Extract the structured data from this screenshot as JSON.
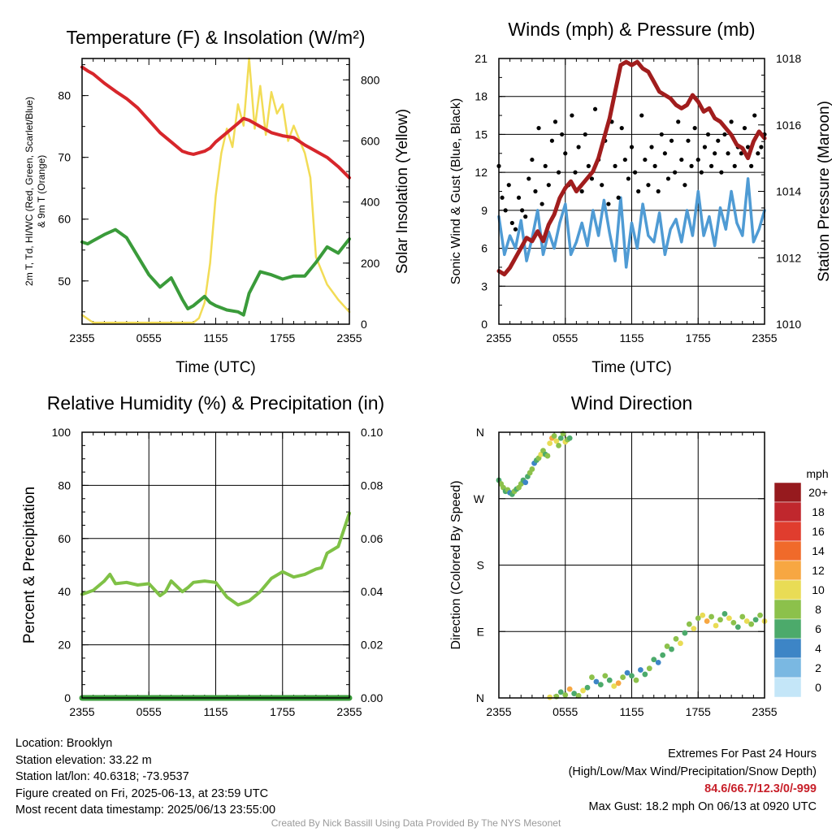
{
  "chart_data": [
    {
      "type": "line",
      "title": "Temperature (F) & Insolation (W/m²)",
      "xlabel": "Time (UTC)",
      "ylabel": "2m T, Td, HI/WC (Red, Green, Scarlet/Blue) & 9m T (Orange)",
      "ylabel_right": "Solar Insolation (Yellow)",
      "x_ticks": [
        "2355",
        "0555",
        "1155",
        "1755",
        "2355"
      ],
      "ylim": [
        43,
        86
      ],
      "y_ticks": [
        50,
        60,
        70,
        80
      ],
      "ylim_right": [
        0,
        870
      ],
      "y_ticks_right": [
        0,
        200,
        400,
        600,
        800
      ],
      "grid": false,
      "series": [
        {
          "color": "#d7262b",
          "axis": "left",
          "x": [
            0,
            0.5,
            1,
            2,
            3,
            4,
            5,
            6,
            7,
            8,
            9,
            9.5,
            10,
            11,
            11.5,
            12,
            13,
            14,
            14.5,
            15,
            16,
            17,
            18,
            19,
            20,
            21,
            22,
            23,
            24
          ],
          "values": [
            84.6,
            84,
            83.5,
            82,
            80.7,
            79.5,
            78,
            76,
            74,
            72.5,
            71,
            70.7,
            70.5,
            71,
            71.5,
            72.5,
            74,
            75.5,
            76.3,
            76,
            75,
            74,
            73.5,
            73.2,
            72,
            71,
            70,
            68.5,
            66.7
          ]
        },
        {
          "color": "#3a9b3a",
          "axis": "left",
          "x": [
            0,
            0.5,
            1,
            2,
            3,
            4,
            5,
            6,
            7,
            8,
            9,
            9.5,
            10,
            11,
            11.5,
            12,
            13,
            14,
            14.5,
            15,
            16,
            17,
            18,
            19,
            20,
            21,
            22,
            23,
            24
          ],
          "values": [
            56.3,
            56,
            56.5,
            57.5,
            58.3,
            57,
            54,
            51,
            49,
            50.5,
            47,
            45.5,
            46,
            47.5,
            46.5,
            46,
            45.3,
            45,
            44.5,
            48,
            51.5,
            51,
            50.3,
            50.8,
            50.8,
            53,
            55.5,
            54.5,
            56.8
          ]
        },
        {
          "color": "#f2dc56",
          "axis": "right",
          "x": [
            0,
            1,
            2,
            3,
            4,
            5,
            6,
            7,
            8,
            9,
            10,
            10.5,
            11,
            11.5,
            12,
            12.5,
            13,
            13.5,
            14,
            14.5,
            15,
            15.5,
            16,
            16.5,
            17,
            17.5,
            18,
            18.5,
            19,
            20,
            20.5,
            21,
            22,
            23,
            24
          ],
          "values": [
            30,
            5,
            5,
            5,
            5,
            5,
            5,
            5,
            5,
            5,
            5,
            20,
            70,
            200,
            420,
            560,
            640,
            580,
            720,
            650,
            870,
            640,
            780,
            620,
            760,
            690,
            720,
            600,
            650,
            560,
            480,
            220,
            130,
            80,
            40
          ]
        }
      ]
    },
    {
      "type": "scatter",
      "title": "Winds (mph) & Pressure (mb)",
      "xlabel": "Time (UTC)",
      "ylabel": "Sonic Wind & Gust (Blue, Black)",
      "ylabel_right": "Station Pressure (Maroon)",
      "x_ticks": [
        "2355",
        "0555",
        "1155",
        "1755",
        "2355"
      ],
      "ylim": [
        0,
        21
      ],
      "y_ticks": [
        0,
        3,
        6,
        9,
        12,
        15,
        18,
        21
      ],
      "ylim_right": [
        1010,
        1018
      ],
      "y_ticks_right": [
        1010,
        1012,
        1014,
        1016,
        1018
      ],
      "grid": true,
      "series": [
        {
          "color": "#4f9bd4",
          "kind": "line",
          "axis": "left",
          "x": [
            0,
            0.5,
            1,
            1.5,
            2,
            2.5,
            3,
            3.5,
            4,
            4.5,
            5,
            5.5,
            6,
            6.5,
            7,
            7.5,
            8,
            8.5,
            9,
            9.5,
            10,
            10.5,
            11,
            11.5,
            12,
            12.5,
            13,
            13.5,
            14,
            14.5,
            15,
            15.5,
            16,
            16.5,
            17,
            17.5,
            18,
            18.5,
            19,
            19.5,
            20,
            20.5,
            21,
            21.5,
            22,
            22.5,
            23,
            23.5,
            24
          ],
          "values": [
            8.5,
            5.5,
            7,
            6,
            8.2,
            5,
            6.8,
            9,
            5.5,
            7.3,
            6,
            8,
            9.5,
            5.5,
            6.5,
            8,
            6.2,
            9,
            7,
            9.8,
            7.2,
            5,
            10,
            4.5,
            8,
            6,
            9.5,
            7,
            6.5,
            8.8,
            5.5,
            7.5,
            8.3,
            6.5,
            9,
            7,
            10.5,
            7,
            8.5,
            6.2,
            9.2,
            7.5,
            10.5,
            8,
            7,
            11.5,
            6.5,
            7.5,
            9
          ]
        },
        {
          "color": "#000000",
          "kind": "dots",
          "axis": "left",
          "x": [
            0,
            0.3,
            0.6,
            0.9,
            1.2,
            1.5,
            1.8,
            2.1,
            2.4,
            2.7,
            3,
            3.3,
            3.6,
            3.9,
            4.2,
            4.5,
            4.8,
            5.1,
            5.4,
            5.7,
            6,
            6.3,
            6.6,
            6.9,
            7.2,
            7.5,
            7.8,
            8.1,
            8.4,
            8.7,
            9,
            9.3,
            9.6,
            9.9,
            10.2,
            10.5,
            10.8,
            11.1,
            11.4,
            11.7,
            12,
            12.3,
            12.6,
            12.9,
            13.2,
            13.5,
            13.8,
            14.1,
            14.4,
            14.7,
            15,
            15.3,
            15.6,
            15.9,
            16.2,
            16.5,
            16.8,
            17.1,
            17.4,
            17.7,
            18,
            18.3,
            18.6,
            18.9,
            19.2,
            19.5,
            19.8,
            20.1,
            20.4,
            20.7,
            21,
            21.3,
            21.6,
            21.9,
            22.2,
            22.5,
            22.8,
            23.1,
            23.4,
            23.7,
            24
          ],
          "values": [
            12.5,
            10,
            9,
            11,
            8,
            7.5,
            10,
            9,
            8.5,
            11.5,
            13,
            10.5,
            15.5,
            9.5,
            12.5,
            11,
            14.5,
            16,
            12,
            15,
            13.5,
            11,
            16.5,
            12,
            14,
            10.5,
            15,
            12.5,
            11.5,
            17,
            13,
            11,
            14.5,
            9.5,
            16,
            12.5,
            10,
            15.5,
            13,
            11.5,
            14,
            12,
            10.5,
            16.5,
            13,
            11,
            14,
            12.5,
            10.5,
            15,
            13.5,
            11.5,
            14.5,
            12,
            16,
            13,
            11,
            14.5,
            12.5,
            15.5,
            13,
            12,
            14,
            15,
            12.5,
            13.5,
            14.5,
            12,
            15,
            13.5,
            16,
            12.5,
            14,
            13.5,
            15.5,
            14,
            12.5,
            16.5,
            13.5,
            14,
            15
          ]
        },
        {
          "color": "#a11d1d",
          "kind": "line",
          "axis": "right",
          "x": [
            0,
            0.5,
            1,
            1.5,
            2,
            2.5,
            3,
            3.5,
            4,
            4.5,
            5,
            5.5,
            6,
            6.5,
            7,
            7.5,
            8,
            8.5,
            9,
            9.5,
            10,
            10.5,
            11,
            11.5,
            12,
            12.5,
            13,
            13.5,
            14,
            14.5,
            15,
            15.5,
            16,
            16.5,
            17,
            17.5,
            18,
            18.5,
            19,
            19.5,
            20,
            20.5,
            21,
            21.5,
            22,
            22.5,
            23,
            23.5,
            24
          ],
          "values": [
            1011.6,
            1011.5,
            1011.7,
            1012,
            1012.3,
            1012.6,
            1012.5,
            1012.8,
            1012.5,
            1013,
            1013.3,
            1013.8,
            1014.1,
            1014.3,
            1014.0,
            1014.2,
            1014.4,
            1014.6,
            1015.0,
            1015.6,
            1016.2,
            1017.0,
            1017.8,
            1017.9,
            1017.8,
            1017.9,
            1017.7,
            1017.6,
            1017.3,
            1017.0,
            1016.9,
            1016.8,
            1016.6,
            1016.5,
            1016.6,
            1016.9,
            1016.7,
            1016.4,
            1016.5,
            1016.2,
            1016.1,
            1015.9,
            1015.7,
            1015.4,
            1015.3,
            1015.0,
            1015.5,
            1015.8,
            1015.6
          ]
        }
      ]
    },
    {
      "type": "line",
      "title": "Relative Humidity (%) & Precipitation (in)",
      "xlabel": "",
      "ylabel": "Percent & Precipitation",
      "x_ticks": [
        "2355",
        "0555",
        "1155",
        "1755",
        "2355"
      ],
      "ylim": [
        0,
        100
      ],
      "y_ticks": [
        0,
        20,
        40,
        60,
        80,
        100
      ],
      "ylim_right": [
        0,
        0.1
      ],
      "y_ticks_right": [
        "0.00",
        "0.02",
        "0.04",
        "0.06",
        "0.08",
        "0.10"
      ],
      "grid": true,
      "series": [
        {
          "color": "#7fc146",
          "axis": "left",
          "x": [
            0,
            1,
            2,
            2.5,
            3,
            4,
            5,
            6,
            7,
            7.5,
            8,
            9,
            9.5,
            10,
            11,
            12,
            13,
            14,
            15,
            16,
            17,
            18,
            19,
            20,
            21,
            21.5,
            22,
            23,
            24
          ],
          "values": [
            39,
            40.5,
            44,
            46.5,
            43,
            43.5,
            42.5,
            43,
            38.5,
            40,
            44,
            40,
            41.5,
            43.5,
            44,
            43.5,
            38,
            35,
            36.5,
            40,
            45,
            47.5,
            45.5,
            46.5,
            48.5,
            49,
            54.5,
            57,
            69.5
          ]
        },
        {
          "color": "#3a9b3a",
          "axis": "right",
          "x": [
            0,
            24
          ],
          "values": [
            0,
            0
          ]
        }
      ]
    },
    {
      "type": "scatter",
      "title": "Wind Direction",
      "xlabel": "",
      "ylabel": "Direction (Colored By Speed)",
      "x_ticks": [
        "2355",
        "0555",
        "1155",
        "1755",
        "2355"
      ],
      "y_ticks": [
        "N",
        "E",
        "S",
        "W",
        "N"
      ],
      "ylim": [
        0,
        360
      ],
      "grid": true,
      "legend_title": "mph",
      "legend_labels": [
        "20+",
        "18",
        "16",
        "14",
        "12",
        "10",
        "8",
        "6",
        "4",
        "2",
        "0"
      ],
      "legend_colors": [
        "#961a1e",
        "#c0272d",
        "#e03d2e",
        "#f06a2a",
        "#f7a742",
        "#e9dc55",
        "#8cc14b",
        "#4caa6b",
        "#3d85c6",
        "#7ab8e2",
        "#c4e6f8"
      ],
      "legend_placement": "right",
      "series": [
        {
          "kind": "dots",
          "color_by": "speed",
          "x": [
            0,
            0.2,
            0.4,
            0.6,
            0.8,
            1,
            1.2,
            1.4,
            1.6,
            1.8,
            2,
            2.2,
            2.4,
            2.6,
            2.8,
            3,
            3.2,
            3.4,
            3.6,
            3.8,
            4,
            4.2,
            4.4,
            4.6,
            4.8,
            5,
            5.2,
            5.4,
            5.6,
            5.8,
            6,
            6.2,
            6.4
          ],
          "values": [
            295,
            290,
            285,
            280,
            282,
            278,
            276,
            280,
            283,
            285,
            290,
            295,
            292,
            300,
            305,
            310,
            318,
            322,
            325,
            330,
            335,
            330,
            328,
            345,
            352,
            355,
            348,
            342,
            352,
            358,
            347,
            350,
            352
          ],
          "speeds": [
            6,
            8,
            7,
            6,
            8,
            4,
            6,
            8,
            5,
            7,
            8,
            6,
            4,
            6,
            8,
            7,
            4,
            6,
            8,
            10,
            8,
            6,
            8,
            10,
            12,
            8,
            10,
            8,
            6,
            8,
            10,
            8,
            6
          ]
        },
        {
          "kind": "dots",
          "color_by": "speed",
          "x": [
            4.6,
            5.2,
            5.6,
            6,
            6.4,
            6.8,
            7.2,
            7.6,
            8,
            8.4,
            8.8,
            9.2,
            9.6,
            10,
            10.4,
            10.8,
            11.2,
            11.6,
            12,
            12.4,
            12.8,
            13.2,
            13.6,
            14,
            14.4,
            14.8,
            15.2,
            15.6,
            16,
            16.4,
            16.8,
            17.2,
            17.6,
            18,
            18.4,
            18.8,
            19.2,
            19.6,
            20,
            20.4,
            20.8,
            21.2,
            21.6,
            22,
            22.4,
            22.8,
            23.2,
            23.6,
            24
          ],
          "values": [
            1,
            2,
            8,
            4,
            12,
            6,
            3,
            10,
            14,
            28,
            22,
            18,
            30,
            24,
            16,
            20,
            28,
            34,
            30,
            24,
            38,
            32,
            40,
            52,
            48,
            58,
            70,
            66,
            80,
            74,
            88,
            100,
            94,
            108,
            112,
            104,
            110,
            98,
            106,
            114,
            108,
            102,
            96,
            110,
            104,
            100,
            106,
            112,
            104
          ],
          "speeds": [
            10,
            8,
            6,
            8,
            12,
            6,
            8,
            10,
            6,
            8,
            4,
            6,
            8,
            6,
            10,
            12,
            8,
            4,
            6,
            8,
            4,
            6,
            8,
            6,
            4,
            6,
            8,
            6,
            8,
            10,
            6,
            8,
            10,
            8,
            10,
            12,
            8,
            10,
            8,
            6,
            10,
            8,
            6,
            8,
            10,
            8,
            6,
            8,
            10
          ]
        }
      ]
    }
  ],
  "footer": {
    "location": "Location: Brooklyn",
    "elevation": "Station elevation: 33.22 m",
    "latlon": "Station lat/lon: 40.6318; -73.9537",
    "created": "Figure created on Fri, 2025-06-13, at 23:59 UTC",
    "recent": "Most recent data timestamp: 2025/06/13 23:55:00",
    "extremes_title": "Extremes For Past 24 Hours",
    "extremes_desc": "(High/Low/Max Wind/Precipitation/Snow Depth)",
    "extremes_values": "84.6/66.7/12.3/0/-999",
    "max_gust": "Max Gust: 18.2 mph On 06/13 at 0920 UTC",
    "credit": "Created By Nick Bassill Using Data Provided By The NYS Mesonet"
  }
}
